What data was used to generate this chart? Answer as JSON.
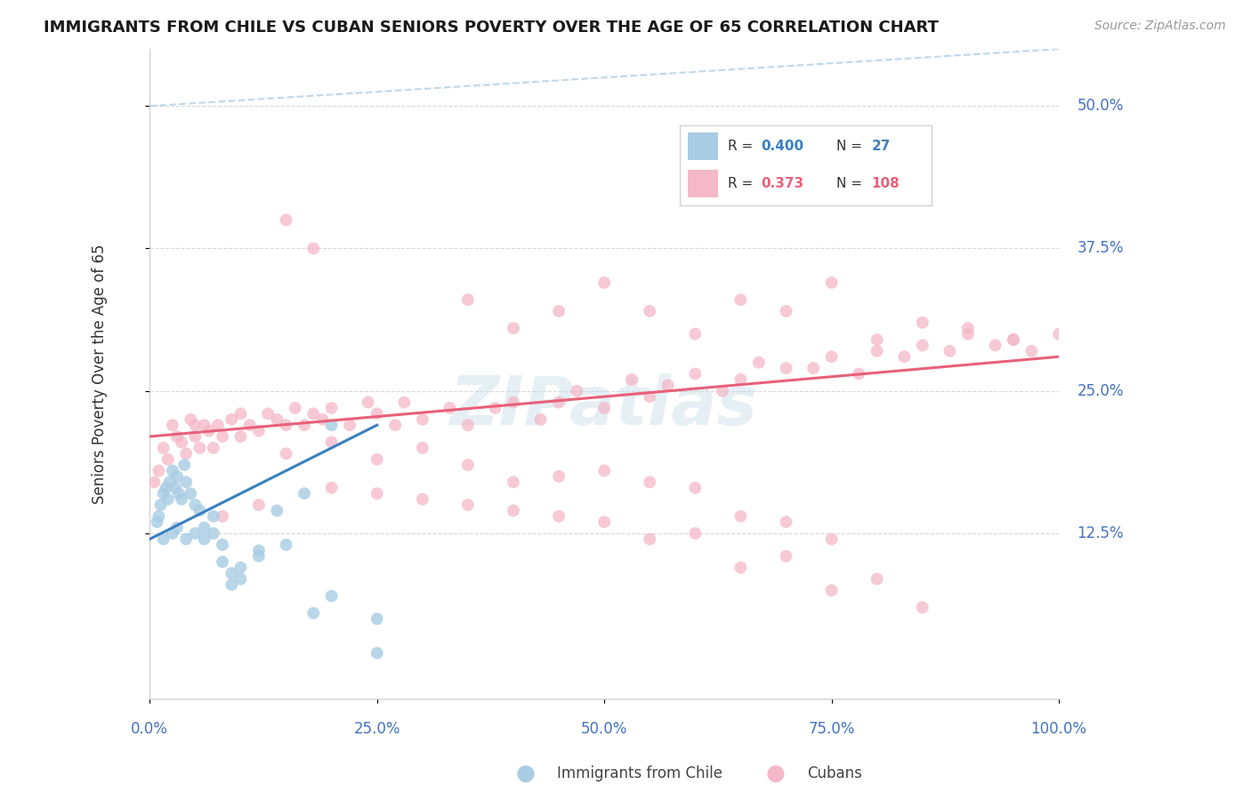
{
  "title": "IMMIGRANTS FROM CHILE VS CUBAN SENIORS POVERTY OVER THE AGE OF 65 CORRELATION CHART",
  "source": "Source: ZipAtlas.com",
  "ylabel": "Seniors Poverty Over the Age of 65",
  "chile_color": "#a8cce4",
  "cuban_color": "#f4b8c8",
  "chile_line_color": "#3a7fc1",
  "cuban_line_color": "#e8607a",
  "diagonal_color": "#b8d4e8",
  "background_color": "#ffffff",
  "xlim": [
    0,
    100
  ],
  "ylim": [
    -2,
    55
  ],
  "ytick_vals": [
    12.5,
    25.0,
    37.5,
    50.0
  ],
  "xtick_vals": [
    0,
    25,
    50,
    75,
    100
  ],
  "chile_x": [
    0.8,
    1.0,
    1.2,
    1.5,
    1.8,
    2.0,
    2.2,
    2.5,
    2.8,
    3.0,
    3.2,
    3.5,
    3.8,
    4.0,
    4.5,
    5.0,
    5.5,
    6.0,
    7.0,
    8.0,
    9.0,
    10.0,
    12.0,
    14.0,
    17.0,
    20.0,
    25.0
  ],
  "chile_y": [
    13.5,
    14.0,
    15.0,
    16.0,
    16.5,
    15.5,
    17.0,
    18.0,
    16.5,
    17.5,
    16.0,
    15.5,
    18.5,
    17.0,
    16.0,
    15.0,
    14.5,
    13.0,
    14.0,
    10.0,
    9.0,
    8.5,
    10.5,
    14.5,
    16.0,
    22.0,
    5.0
  ],
  "chile_extra_x": [
    1.5,
    2.5,
    3.0,
    4.0,
    5.0,
    6.0,
    7.0,
    8.0,
    9.0,
    10.0,
    12.0,
    15.0,
    18.0,
    20.0,
    25.0
  ],
  "chile_extra_y": [
    12.0,
    12.5,
    13.0,
    12.0,
    12.5,
    12.0,
    12.5,
    11.5,
    8.0,
    9.5,
    11.0,
    11.5,
    5.5,
    7.0,
    2.0
  ],
  "cuban_cluster1_x": [
    0.5,
    1.0,
    1.5,
    2.0,
    2.5,
    3.0,
    3.5,
    4.0,
    4.5,
    5.0,
    5.5,
    6.0,
    6.5,
    7.0,
    7.5,
    8.0,
    9.0,
    10.0,
    11.0,
    12.0,
    13.0,
    14.0,
    15.0,
    16.0,
    17.0,
    18.0,
    19.0,
    20.0,
    22.0,
    24.0
  ],
  "cuban_cluster1_y": [
    17.0,
    18.0,
    20.0,
    19.0,
    22.0,
    21.0,
    20.5,
    19.5,
    22.5,
    21.0,
    20.0,
    22.0,
    21.5,
    20.0,
    22.0,
    21.0,
    22.5,
    23.0,
    22.0,
    21.5,
    23.0,
    22.5,
    22.0,
    23.5,
    22.0,
    23.0,
    22.5,
    23.5,
    22.0,
    24.0
  ],
  "cuban_spread_x": [
    25.0,
    27.0,
    28.0,
    30.0,
    33.0,
    35.0,
    38.0,
    40.0,
    43.0,
    45.0,
    47.0,
    50.0,
    53.0,
    55.0,
    57.0,
    60.0,
    63.0,
    65.0,
    67.0,
    70.0,
    73.0,
    75.0,
    78.0,
    80.0,
    83.0,
    85.0,
    88.0,
    90.0,
    93.0,
    95.0,
    97.0,
    100.0
  ],
  "cuban_spread_y": [
    23.0,
    22.0,
    24.0,
    22.5,
    23.5,
    22.0,
    23.5,
    24.0,
    22.5,
    24.0,
    25.0,
    23.5,
    26.0,
    24.5,
    25.5,
    26.5,
    25.0,
    26.0,
    27.5,
    27.0,
    27.0,
    28.0,
    26.5,
    28.5,
    28.0,
    29.0,
    28.5,
    30.0,
    29.0,
    29.5,
    28.5,
    30.0
  ],
  "cuban_outlier_x": [
    15.0,
    18.0,
    35.0,
    40.0,
    45.0,
    50.0,
    55.0,
    60.0,
    65.0,
    70.0,
    75.0,
    80.0,
    85.0,
    90.0,
    95.0,
    20.0,
    25.0,
    30.0,
    35.0,
    40.0,
    8.0,
    12.0,
    45.0,
    50.0,
    55.0,
    60.0,
    65.0,
    70.0,
    75.0,
    5.0,
    10.0,
    15.0,
    20.0,
    25.0,
    30.0,
    35.0,
    40.0,
    45.0,
    50.0,
    55.0,
    60.0,
    65.0,
    70.0,
    75.0,
    80.0,
    85.0
  ],
  "cuban_outlier_y": [
    40.0,
    37.5,
    33.0,
    30.5,
    32.0,
    34.5,
    32.0,
    30.0,
    33.0,
    32.0,
    34.5,
    29.5,
    31.0,
    30.5,
    29.5,
    16.5,
    16.0,
    15.5,
    15.0,
    14.5,
    14.0,
    15.0,
    14.0,
    13.5,
    12.0,
    12.5,
    9.5,
    10.5,
    12.0,
    22.0,
    21.0,
    19.5,
    20.5,
    19.0,
    20.0,
    18.5,
    17.0,
    17.5,
    18.0,
    17.0,
    16.5,
    14.0,
    13.5,
    7.5,
    8.5,
    6.0
  ]
}
